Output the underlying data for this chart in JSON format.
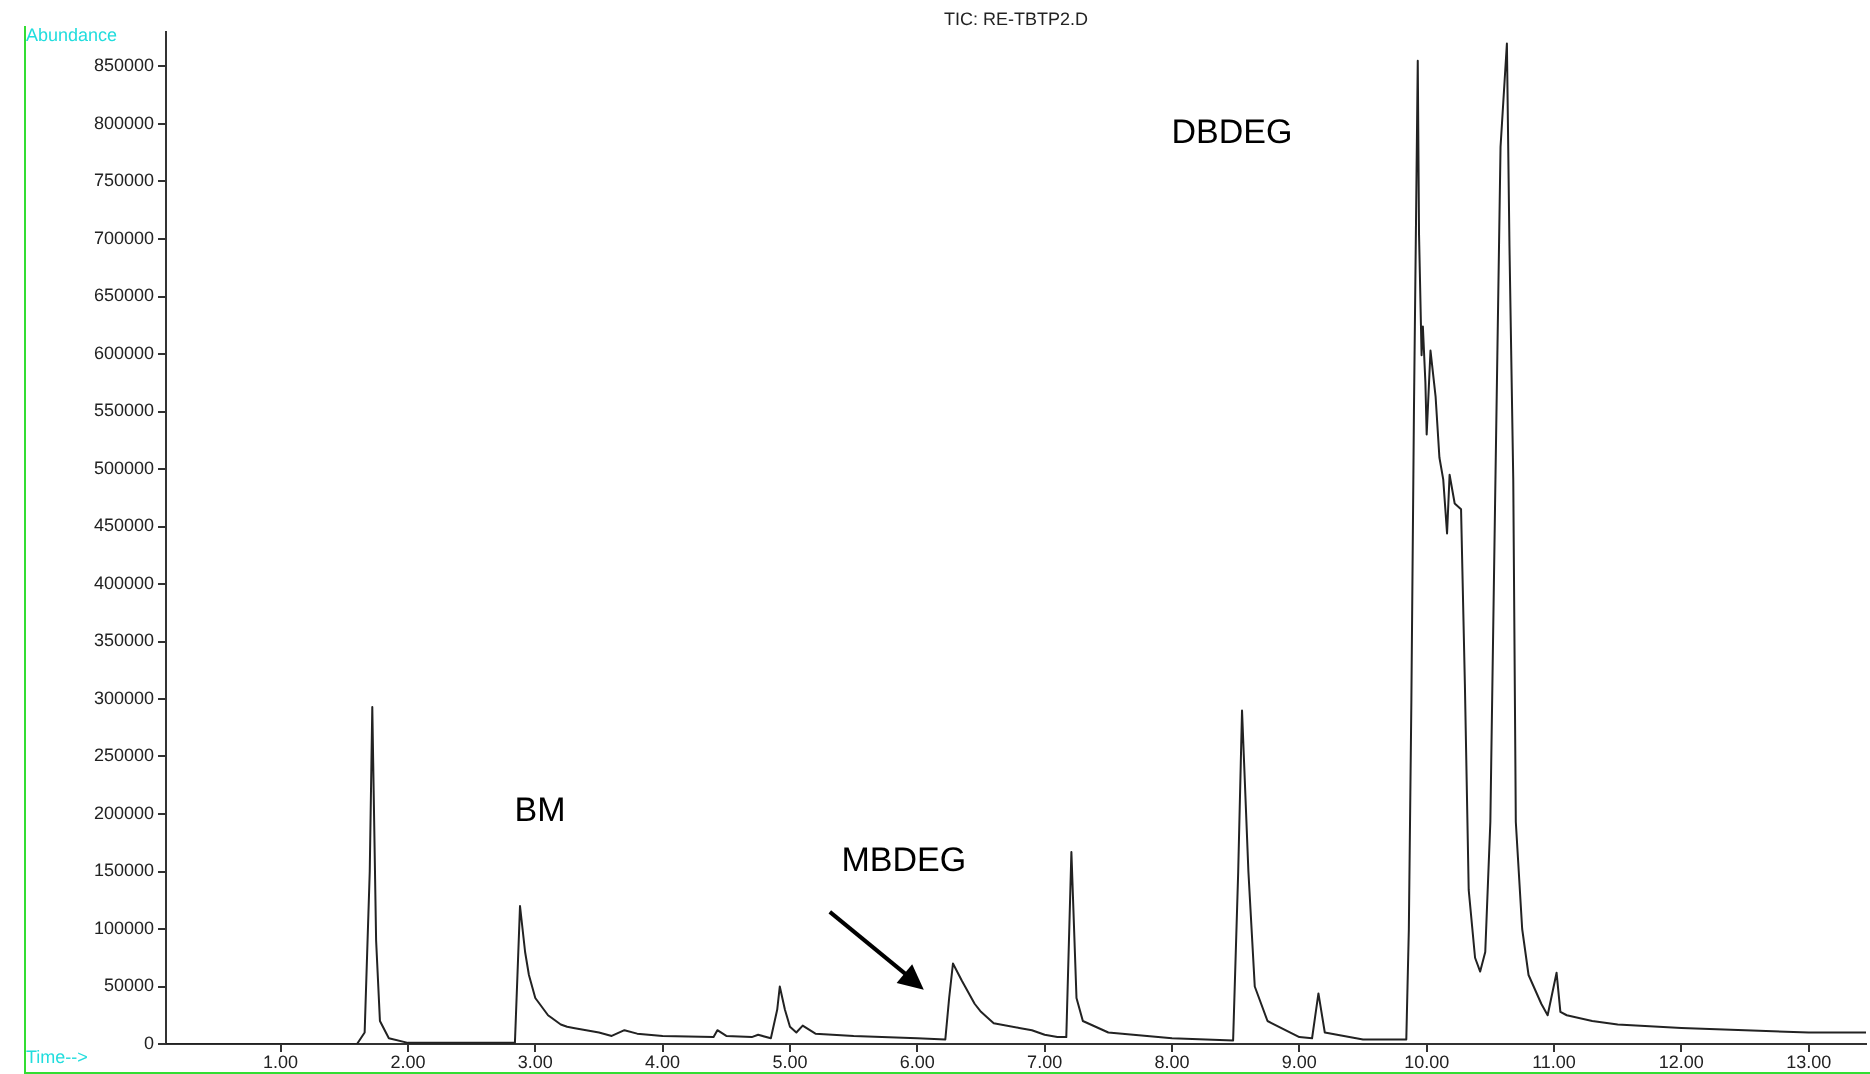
{
  "chart_data": {
    "type": "line",
    "title": "TIC: RE-TBTP2.D",
    "xlabel": "Time-->",
    "ylabel": "Abundance",
    "x": [
      0.1,
      1.6,
      1.66,
      1.7,
      1.72,
      1.75,
      1.78,
      1.85,
      2.0,
      2.5,
      2.84,
      2.86,
      2.88,
      2.92,
      2.95,
      3.0,
      3.1,
      3.2,
      3.25,
      3.3,
      3.5,
      3.6,
      3.7,
      3.8,
      4.0,
      4.4,
      4.43,
      4.5,
      4.7,
      4.75,
      4.85,
      4.9,
      4.92,
      4.96,
      5.0,
      5.05,
      5.1,
      5.2,
      5.5,
      6.0,
      6.22,
      6.25,
      6.28,
      6.35,
      6.45,
      6.5,
      6.6,
      6.8,
      6.9,
      7.0,
      7.1,
      7.17,
      7.21,
      7.25,
      7.3,
      7.5,
      8.0,
      8.48,
      8.52,
      8.55,
      8.6,
      8.65,
      8.75,
      9.0,
      9.1,
      9.15,
      9.2,
      9.5,
      9.84,
      9.86,
      9.88,
      9.9,
      9.93,
      9.94,
      9.96,
      9.97,
      9.99,
      10.0,
      10.03,
      10.07,
      10.1,
      10.13,
      10.16,
      10.18,
      10.22,
      10.27,
      10.3,
      10.33,
      10.38,
      10.42,
      10.46,
      10.5,
      10.54,
      10.58,
      10.63,
      10.65,
      10.68,
      10.7,
      10.75,
      10.8,
      10.9,
      10.95,
      11.02,
      11.05,
      11.1,
      11.3,
      11.5,
      12.0,
      12.5,
      13.0,
      13.45
    ],
    "series": [
      {
        "color": "#222222",
        "values": [
          0,
          0,
          10000,
          150000,
          293000,
          90000,
          20000,
          5000,
          1000,
          1000,
          1000,
          60000,
          120000,
          80000,
          60000,
          40000,
          25000,
          17000,
          15000,
          14000,
          10000,
          7000,
          12000,
          9000,
          7000,
          6000,
          12000,
          7000,
          6000,
          8000,
          5000,
          30000,
          50000,
          30000,
          15000,
          10000,
          16000,
          9000,
          7000,
          5000,
          4000,
          40000,
          70000,
          55000,
          35000,
          28000,
          18000,
          14000,
          12000,
          8000,
          6000,
          6000,
          167000,
          40000,
          20000,
          10000,
          5000,
          3000,
          150000,
          290000,
          150000,
          50000,
          20000,
          6000,
          5000,
          44000,
          10000,
          4000,
          4000,
          100000,
          300000,
          550000,
          855000,
          704000,
          599000,
          624000,
          575000,
          530000,
          603000,
          563000,
          510000,
          491000,
          444000,
          495000,
          470000,
          465000,
          313000,
          134000,
          75000,
          63000,
          80000,
          193000,
          491000,
          780000,
          870000,
          695000,
          490000,
          193000,
          100000,
          60000,
          35000,
          25000,
          62000,
          28000,
          25000,
          20000,
          17000,
          14000,
          12000,
          10000,
          10000
        ]
      }
    ],
    "xlim": [
      0.1,
      13.45
    ],
    "ylim": [
      0,
      880000
    ],
    "xticks": [
      {
        "value": 1,
        "label": "1.00"
      },
      {
        "value": 2,
        "label": "2.00"
      },
      {
        "value": 3,
        "label": "3.00"
      },
      {
        "value": 4,
        "label": "4.00"
      },
      {
        "value": 5,
        "label": "5.00"
      },
      {
        "value": 6,
        "label": "6.00"
      },
      {
        "value": 7,
        "label": "7.00"
      },
      {
        "value": 8,
        "label": "8.00"
      },
      {
        "value": 9,
        "label": "9.00"
      },
      {
        "value": 10,
        "label": "10.00"
      },
      {
        "value": 11,
        "label": "11.00"
      },
      {
        "value": 12,
        "label": "12.00"
      },
      {
        "value": 13,
        "label": "13.00"
      }
    ],
    "yticks": [
      0,
      50000,
      100000,
      150000,
      200000,
      250000,
      300000,
      350000,
      400000,
      450000,
      500000,
      550000,
      600000,
      650000,
      700000,
      750000,
      800000,
      850000
    ],
    "annotations": [
      "BM",
      "MBDEG",
      "DBDEG"
    ],
    "marker": "none",
    "line_style": "solid",
    "legend": false,
    "grid": false
  }
}
